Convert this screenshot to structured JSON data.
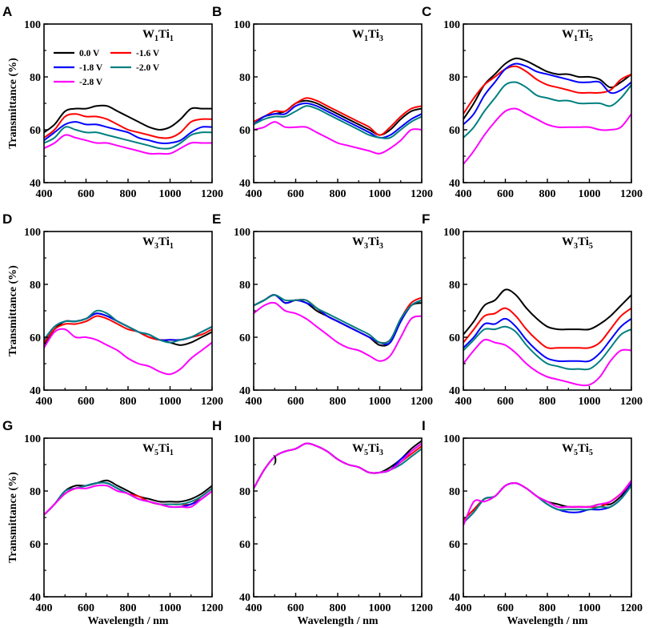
{
  "x": [
    400,
    450,
    500,
    550,
    600,
    650,
    700,
    750,
    800,
    850,
    900,
    950,
    1000,
    1050,
    1100,
    1150,
    1200
  ],
  "axes": {
    "xlabel": "Wavelength / nm",
    "ylabel": "Transmittance (%)",
    "xlim": [
      400,
      1200
    ],
    "ylim": [
      40,
      100
    ],
    "xticks": [
      400,
      600,
      800,
      1000,
      1200
    ],
    "yticks": [
      40,
      60,
      80,
      100
    ]
  },
  "legend": {
    "panel": "A",
    "entries": [
      {
        "label": "0.0 V",
        "color": "#000000"
      },
      {
        "label": "-1.6 V",
        "color": "#ff0000"
      },
      {
        "label": "-1.8 V",
        "color": "#0000ff"
      },
      {
        "label": "-2.0 V",
        "color": "#008080"
      },
      {
        "label": "-2.8 V",
        "color": "#ff00ff"
      }
    ]
  },
  "chart_data": [
    {
      "type": "line",
      "letter": "A",
      "name_base": "W",
      "name_sub1": "1",
      "name_mid": "Ti",
      "name_sub2": "1",
      "series": [
        {
          "name": "0.0 V",
          "color": "#000000",
          "values": [
            59,
            62,
            67,
            68,
            68,
            69,
            69,
            67,
            65,
            63,
            61,
            60,
            61,
            64,
            68,
            68,
            68
          ]
        },
        {
          "name": "-1.6 V",
          "color": "#ff0000",
          "values": [
            57,
            60,
            65,
            66,
            65,
            65,
            64,
            62,
            60,
            59,
            58,
            57,
            57,
            59,
            63,
            64,
            64
          ]
        },
        {
          "name": "-1.8 V",
          "color": "#0000ff",
          "values": [
            56,
            59,
            62,
            63,
            62,
            62,
            61,
            60,
            59,
            57,
            56,
            55,
            55,
            56,
            59,
            61,
            61
          ]
        },
        {
          "name": "-2.0 V",
          "color": "#008080",
          "values": [
            55,
            57,
            61,
            60,
            59,
            59,
            58,
            57,
            56,
            55,
            54,
            53,
            53,
            55,
            58,
            59,
            59
          ]
        },
        {
          "name": "-2.8 V",
          "color": "#ff00ff",
          "values": [
            53,
            55,
            58,
            57,
            56,
            55,
            55,
            54,
            53,
            52,
            51,
            51,
            51,
            53,
            55,
            55,
            55
          ]
        }
      ]
    },
    {
      "type": "line",
      "letter": "B",
      "name_base": "W",
      "name_sub1": "1",
      "name_mid": "Ti",
      "name_sub2": "3",
      "series": [
        {
          "name": "0.0 V",
          "color": "#000000",
          "values": [
            63,
            65,
            66,
            67,
            70,
            71,
            70,
            68,
            66,
            64,
            62,
            60,
            58,
            60,
            64,
            67,
            68
          ]
        },
        {
          "name": "-1.6 V",
          "color": "#ff0000",
          "values": [
            63,
            65,
            67,
            67,
            70,
            72,
            71,
            69,
            67,
            65,
            63,
            61,
            58,
            61,
            65,
            68,
            69
          ]
        },
        {
          "name": "-1.8 V",
          "color": "#0000ff",
          "values": [
            62,
            65,
            66,
            66,
            69,
            70,
            69,
            67,
            65,
            63,
            61,
            59,
            57,
            58,
            61,
            64,
            66
          ]
        },
        {
          "name": "-2.0 V",
          "color": "#008080",
          "values": [
            62,
            64,
            65,
            65,
            67,
            69,
            68,
            66,
            64,
            62,
            60,
            58,
            57,
            57,
            60,
            63,
            65
          ]
        },
        {
          "name": "-2.8 V",
          "color": "#ff00ff",
          "values": [
            60,
            61,
            63,
            61,
            61,
            61,
            59,
            57,
            55,
            54,
            53,
            52,
            51,
            53,
            56,
            60,
            60
          ]
        }
      ]
    },
    {
      "type": "line",
      "letter": "C",
      "name_base": "W",
      "name_sub1": "1",
      "name_mid": "Ti",
      "name_sub2": "5",
      "series": [
        {
          "name": "0.0 V",
          "color": "#000000",
          "values": [
            64,
            70,
            77,
            81,
            85,
            87,
            86,
            84,
            82,
            81,
            81,
            80,
            80,
            79,
            76,
            78,
            81
          ]
        },
        {
          "name": "-1.6 V",
          "color": "#ff0000",
          "values": [
            66,
            72,
            77,
            80,
            83,
            84,
            82,
            79,
            77,
            76,
            75,
            74,
            74,
            74,
            75,
            79,
            81
          ]
        },
        {
          "name": "-1.8 V",
          "color": "#0000ff",
          "values": [
            62,
            66,
            73,
            78,
            83,
            85,
            84,
            82,
            81,
            80,
            79,
            78,
            78,
            78,
            74,
            75,
            78
          ]
        },
        {
          "name": "-2.0 V",
          "color": "#008080",
          "values": [
            57,
            61,
            67,
            72,
            77,
            78,
            76,
            73,
            72,
            71,
            71,
            70,
            70,
            70,
            69,
            72,
            77
          ]
        },
        {
          "name": "-2.8 V",
          "color": "#ff00ff",
          "values": [
            47,
            52,
            58,
            63,
            67,
            68,
            66,
            64,
            62,
            61,
            61,
            61,
            61,
            60,
            60,
            61,
            66
          ]
        }
      ]
    },
    {
      "type": "line",
      "letter": "D",
      "name_base": "W",
      "name_sub1": "3",
      "name_mid": "Ti",
      "name_sub2": "1",
      "series": [
        {
          "name": "0.0 V",
          "color": "#000000",
          "values": [
            57,
            63,
            66,
            66,
            67,
            69,
            68,
            66,
            64,
            62,
            60,
            59,
            58,
            57,
            58,
            60,
            62
          ]
        },
        {
          "name": "-1.6 V",
          "color": "#ff0000",
          "values": [
            58,
            63,
            65,
            65,
            66,
            68,
            67,
            65,
            63,
            62,
            60,
            59,
            59,
            59,
            60,
            61,
            63
          ]
        },
        {
          "name": "-1.8 V",
          "color": "#0000ff",
          "values": [
            59,
            64,
            66,
            66,
            67,
            69,
            68,
            66,
            64,
            62,
            61,
            59,
            59,
            59,
            60,
            62,
            64
          ]
        },
        {
          "name": "-2.0 V",
          "color": "#008080",
          "values": [
            59,
            64,
            66,
            66,
            67,
            70,
            69,
            66,
            64,
            62,
            61,
            59,
            58,
            59,
            60,
            62,
            64
          ]
        },
        {
          "name": "-2.8 V",
          "color": "#ff00ff",
          "values": [
            56,
            62,
            63,
            60,
            60,
            59,
            57,
            55,
            52,
            50,
            49,
            47,
            46,
            48,
            52,
            55,
            58
          ]
        }
      ]
    },
    {
      "type": "line",
      "letter": "E",
      "name_base": "W",
      "name_sub1": "3",
      "name_mid": "Ti",
      "name_sub2": "3",
      "series": [
        {
          "name": "0.0 V",
          "color": "#000000",
          "values": [
            72,
            74,
            76,
            73,
            74,
            73,
            70,
            68,
            66,
            64,
            62,
            60,
            57,
            58,
            66,
            72,
            73
          ]
        },
        {
          "name": "-1.6 V",
          "color": "#ff0000",
          "values": [
            72,
            74,
            76,
            73,
            74,
            74,
            71,
            68,
            66,
            64,
            62,
            60,
            58,
            59,
            67,
            73,
            75
          ]
        },
        {
          "name": "-1.8 V",
          "color": "#0000ff",
          "values": [
            72,
            74,
            76,
            73,
            74,
            73,
            71,
            68,
            66,
            64,
            62,
            60,
            58,
            58,
            66,
            72,
            74
          ]
        },
        {
          "name": "-2.0 V",
          "color": "#008080",
          "values": [
            72,
            74,
            76,
            74,
            74,
            74,
            71,
            69,
            67,
            65,
            63,
            61,
            58,
            59,
            67,
            72,
            74
          ]
        },
        {
          "name": "-2.8 V",
          "color": "#ff00ff",
          "values": [
            69,
            72,
            73,
            70,
            69,
            67,
            64,
            61,
            58,
            56,
            55,
            53,
            51,
            53,
            60,
            67,
            68
          ]
        }
      ]
    },
    {
      "type": "line",
      "letter": "F",
      "name_base": "W",
      "name_sub1": "3",
      "name_mid": "Ti",
      "name_sub2": "5",
      "series": [
        {
          "name": "0.0 V",
          "color": "#000000",
          "values": [
            61,
            66,
            72,
            74,
            78,
            76,
            71,
            67,
            64,
            63,
            63,
            63,
            63,
            65,
            68,
            72,
            76
          ]
        },
        {
          "name": "-1.6 V",
          "color": "#ff0000",
          "values": [
            58,
            63,
            68,
            69,
            71,
            68,
            63,
            59,
            56,
            56,
            56,
            56,
            56,
            58,
            63,
            68,
            71
          ]
        },
        {
          "name": "-1.8 V",
          "color": "#0000ff",
          "values": [
            56,
            60,
            65,
            65,
            67,
            64,
            59,
            55,
            52,
            51,
            51,
            51,
            51,
            54,
            59,
            64,
            67
          ]
        },
        {
          "name": "-2.0 V",
          "color": "#008080",
          "values": [
            55,
            59,
            63,
            63,
            64,
            62,
            57,
            53,
            50,
            49,
            48,
            48,
            48,
            51,
            56,
            61,
            63
          ]
        },
        {
          "name": "-2.8 V",
          "color": "#ff00ff",
          "values": [
            50,
            55,
            59,
            58,
            57,
            54,
            50,
            47,
            45,
            44,
            43,
            42,
            42,
            45,
            51,
            55,
            55
          ]
        }
      ]
    },
    {
      "type": "line",
      "letter": "G",
      "name_base": "W",
      "name_sub1": "5",
      "name_mid": "Ti",
      "name_sub2": "1",
      "series": [
        {
          "name": "0.0 V",
          "color": "#000000",
          "values": [
            71,
            75,
            80,
            82,
            82,
            83,
            84,
            82,
            80,
            78,
            77,
            76,
            76,
            76,
            77,
            79,
            82
          ]
        },
        {
          "name": "-1.6 V",
          "color": "#ff0000",
          "values": [
            71,
            75,
            79,
            81,
            82,
            83,
            83,
            81,
            79,
            78,
            76,
            75,
            75,
            75,
            75,
            78,
            81
          ]
        },
        {
          "name": "-1.8 V",
          "color": "#0000ff",
          "values": [
            71,
            75,
            80,
            81,
            82,
            83,
            83,
            81,
            79,
            77,
            76,
            75,
            74,
            74,
            75,
            77,
            80
          ]
        },
        {
          "name": "-2.0 V",
          "color": "#008080",
          "values": [
            71,
            75,
            80,
            81,
            82,
            83,
            83,
            81,
            79,
            77,
            76,
            75,
            75,
            75,
            76,
            78,
            81
          ]
        },
        {
          "name": "-2.8 V",
          "color": "#ff00ff",
          "values": [
            71,
            75,
            79,
            81,
            81,
            82,
            82,
            80,
            79,
            77,
            76,
            75,
            74,
            74,
            74,
            77,
            80
          ]
        }
      ]
    },
    {
      "type": "line",
      "letter": "H",
      "name_base": "W",
      "name_sub1": "5",
      "name_mid": "Ti",
      "name_sub2": "3",
      "annotation": ")",
      "series": [
        {
          "name": "0.0 V",
          "color": "#000000",
          "values": [
            81,
            88,
            93,
            95,
            96,
            98,
            97,
            95,
            92,
            90,
            89,
            87,
            87,
            89,
            92,
            96,
            99
          ]
        },
        {
          "name": "-1.6 V",
          "color": "#ff0000",
          "values": [
            81,
            88,
            93,
            95,
            96,
            98,
            97,
            95,
            92,
            90,
            89,
            87,
            87,
            88,
            91,
            94,
            97
          ]
        },
        {
          "name": "-1.8 V",
          "color": "#0000ff",
          "values": [
            81,
            88,
            93,
            95,
            96,
            98,
            97,
            95,
            92,
            90,
            89,
            87,
            87,
            88,
            92,
            95,
            98
          ]
        },
        {
          "name": "-2.0 V",
          "color": "#008080",
          "values": [
            81,
            88,
            93,
            95,
            96,
            98,
            97,
            95,
            92,
            90,
            89,
            87,
            87,
            88,
            90,
            93,
            96
          ]
        },
        {
          "name": "-2.8 V",
          "color": "#ff00ff",
          "values": [
            81,
            88,
            93,
            95,
            96,
            98,
            97,
            95,
            92,
            90,
            89,
            87,
            87,
            88,
            91,
            95,
            98
          ]
        }
      ]
    },
    {
      "type": "line",
      "letter": "I",
      "name_base": "W",
      "name_sub1": "5",
      "name_mid": "Ti",
      "name_sub2": "5",
      "series": [
        {
          "name": "0.0 V",
          "color": "#000000",
          "values": [
            69,
            73,
            77,
            78,
            82,
            83,
            81,
            78,
            76,
            75,
            74,
            74,
            74,
            75,
            75,
            78,
            83
          ]
        },
        {
          "name": "-1.6 V",
          "color": "#ff0000",
          "values": [
            69,
            73,
            77,
            78,
            82,
            83,
            81,
            78,
            76,
            74,
            74,
            74,
            74,
            74,
            76,
            79,
            83
          ]
        },
        {
          "name": "-1.8 V",
          "color": "#0000ff",
          "values": [
            68,
            72,
            77,
            78,
            82,
            83,
            81,
            78,
            75,
            73,
            72,
            72,
            73,
            73,
            74,
            77,
            83
          ]
        },
        {
          "name": "-2.0 V",
          "color": "#008080",
          "values": [
            68,
            72,
            77,
            78,
            82,
            83,
            81,
            78,
            75,
            73,
            73,
            73,
            73,
            74,
            74,
            77,
            82
          ]
        },
        {
          "name": "-2.8 V",
          "color": "#ff00ff",
          "values": [
            67,
            76,
            76,
            78,
            82,
            83,
            81,
            78,
            76,
            74,
            74,
            74,
            74,
            75,
            76,
            79,
            84
          ]
        }
      ]
    }
  ]
}
